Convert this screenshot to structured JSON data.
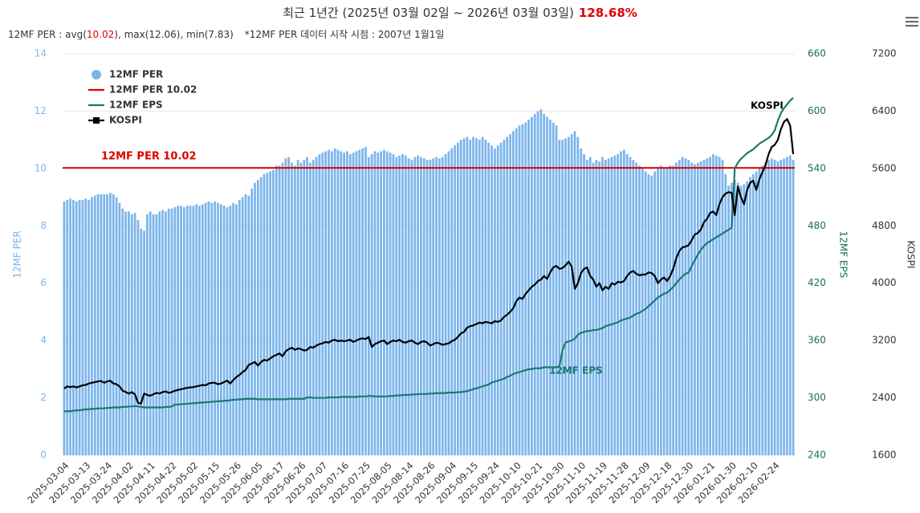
{
  "chart_data": {
    "type": "bar",
    "title": "최근 1년간 (2025년 03월 02일 ~ 2026년 03월 03일)",
    "title_highlight": "128.68%",
    "subtitle": [
      "12MF PER : avg(",
      "10.02",
      "), max(12.06), min(7.83)",
      "*12MF PER 데이터 시작 시점 : 2007년 1월1일"
    ],
    "categories": [
      "2025-03-04",
      null,
      null,
      null,
      null,
      null,
      null,
      "2025-03-13",
      null,
      null,
      null,
      null,
      null,
      null,
      "2025-03-24",
      null,
      null,
      null,
      null,
      null,
      null,
      "2025-04-02",
      null,
      null,
      null,
      null,
      null,
      null,
      "2025-04-11",
      null,
      null,
      null,
      null,
      null,
      null,
      "2025-04-22",
      null,
      null,
      null,
      null,
      null,
      null,
      "2025-05-02",
      null,
      null,
      null,
      null,
      null,
      null,
      "2025-05-15",
      null,
      null,
      null,
      null,
      null,
      null,
      "2025-05-26",
      null,
      null,
      null,
      null,
      null,
      null,
      "2025-06-05",
      null,
      null,
      null,
      null,
      null,
      null,
      "2025-06-17",
      null,
      null,
      null,
      null,
      null,
      null,
      "2025-06-26",
      null,
      null,
      null,
      null,
      null,
      null,
      "2025-07-07",
      null,
      null,
      null,
      null,
      null,
      null,
      "2025-07-16",
      null,
      null,
      null,
      null,
      null,
      null,
      "2025-07-25",
      null,
      null,
      null,
      null,
      null,
      null,
      "2025-08-05",
      null,
      null,
      null,
      null,
      null,
      null,
      "2025-08-14",
      null,
      null,
      null,
      null,
      null,
      null,
      "2025-08-26",
      null,
      null,
      null,
      null,
      null,
      null,
      "2025-09-04",
      null,
      null,
      null,
      null,
      null,
      null,
      "2025-09-15",
      null,
      null,
      null,
      null,
      null,
      null,
      "2025-09-24",
      null,
      null,
      null,
      null,
      null,
      null,
      "2025-10-10",
      null,
      null,
      null,
      null,
      null,
      null,
      "2025-10-21",
      null,
      null,
      null,
      null,
      null,
      null,
      "2025-10-30",
      null,
      null,
      null,
      null,
      null,
      null,
      "2025-11-10",
      null,
      null,
      null,
      null,
      null,
      null,
      "2025-11-19",
      null,
      null,
      null,
      null,
      null,
      null,
      "2025-11-28",
      null,
      null,
      null,
      null,
      null,
      null,
      "2025-12-09",
      null,
      null,
      null,
      null,
      null,
      null,
      "2025-12-18",
      null,
      null,
      null,
      null,
      null,
      null,
      "2025-12-30",
      null,
      null,
      null,
      null,
      null,
      null,
      "2026-01-21",
      null,
      null,
      null,
      null,
      null,
      null,
      "2026-01-30",
      null,
      null,
      null,
      null,
      null,
      null,
      "2026-02-10",
      null,
      null,
      null,
      null,
      null,
      null,
      "2026-02-24",
      null,
      null,
      null,
      null,
      null,
      null
    ],
    "series": [
      {
        "name": "12MF PER",
        "type": "bar",
        "color": "#7cb5ec",
        "values": [
          8.85,
          8.9,
          8.95,
          8.9,
          8.85,
          8.9,
          8.9,
          8.95,
          8.9,
          9.0,
          9.05,
          9.1,
          9.1,
          9.1,
          9.1,
          9.15,
          9.1,
          9.0,
          8.8,
          8.6,
          8.5,
          8.5,
          8.4,
          8.45,
          8.2,
          7.9,
          7.83,
          8.4,
          8.5,
          8.4,
          8.4,
          8.5,
          8.55,
          8.5,
          8.6,
          8.6,
          8.65,
          8.7,
          8.7,
          8.65,
          8.7,
          8.7,
          8.7,
          8.75,
          8.7,
          8.75,
          8.8,
          8.85,
          8.8,
          8.85,
          8.8,
          8.75,
          8.7,
          8.65,
          8.7,
          8.8,
          8.75,
          8.9,
          9.0,
          9.1,
          9.05,
          9.3,
          9.5,
          9.6,
          9.7,
          9.8,
          9.85,
          9.9,
          9.95,
          10.1,
          10.1,
          10.2,
          10.35,
          10.4,
          10.2,
          10.1,
          10.3,
          10.2,
          10.3,
          10.4,
          10.2,
          10.3,
          10.4,
          10.5,
          10.55,
          10.6,
          10.65,
          10.6,
          10.7,
          10.65,
          10.6,
          10.55,
          10.6,
          10.5,
          10.55,
          10.6,
          10.65,
          10.7,
          10.75,
          10.4,
          10.5,
          10.6,
          10.55,
          10.6,
          10.65,
          10.6,
          10.55,
          10.5,
          10.4,
          10.45,
          10.5,
          10.45,
          10.35,
          10.3,
          10.4,
          10.45,
          10.4,
          10.35,
          10.3,
          10.3,
          10.35,
          10.4,
          10.35,
          10.4,
          10.5,
          10.6,
          10.7,
          10.8,
          10.9,
          11.0,
          11.05,
          11.1,
          11.0,
          11.1,
          11.05,
          11.0,
          11.1,
          11.0,
          10.9,
          10.8,
          10.7,
          10.8,
          10.9,
          11.0,
          11.1,
          11.2,
          11.3,
          11.4,
          11.5,
          11.55,
          11.6,
          11.7,
          11.8,
          11.9,
          12.0,
          12.06,
          11.9,
          11.8,
          11.7,
          11.6,
          11.5,
          11.0,
          11.0,
          11.05,
          11.1,
          11.2,
          11.3,
          11.1,
          10.7,
          10.5,
          10.3,
          10.4,
          10.2,
          10.3,
          10.25,
          10.4,
          10.3,
          10.35,
          10.4,
          10.45,
          10.5,
          10.6,
          10.65,
          10.5,
          10.4,
          10.3,
          10.2,
          10.1,
          10.0,
          9.9,
          9.8,
          9.75,
          9.9,
          10.0,
          10.1,
          10.0,
          10.05,
          10.1,
          10.1,
          10.2,
          10.3,
          10.4,
          10.35,
          10.3,
          10.2,
          10.15,
          10.2,
          10.25,
          10.3,
          10.35,
          10.4,
          10.5,
          10.45,
          10.4,
          10.3,
          9.8,
          9.4,
          9.5,
          9.6,
          9.5,
          9.4,
          9.45,
          9.55,
          9.7,
          9.8,
          9.9,
          10.0,
          10.1,
          10.2,
          10.3,
          10.35,
          10.3,
          10.25,
          10.3,
          10.35,
          10.4,
          10.45,
          10.3
        ]
      },
      {
        "name": "12MF EPS",
        "type": "line",
        "axis": "y2",
        "color": "#1b7a6e",
        "values": [
          286,
          286,
          286,
          286.5,
          287,
          287,
          287.5,
          288,
          288,
          288.5,
          288.5,
          289,
          289,
          289,
          289.5,
          289.5,
          290,
          290,
          290,
          290.5,
          290.5,
          291,
          291,
          291.5,
          291,
          290.5,
          290,
          290,
          290,
          290,
          290,
          290,
          290,
          290.5,
          290.5,
          291,
          293,
          293,
          293.5,
          293.5,
          294,
          294,
          294.5,
          294.5,
          295,
          295,
          295.5,
          295.5,
          296,
          296,
          296.5,
          296.5,
          297,
          297,
          297.5,
          298,
          298,
          298.5,
          298.5,
          299,
          299,
          299,
          299,
          298.5,
          298.5,
          298.5,
          298.5,
          298.5,
          298.5,
          298.5,
          298.5,
          298.5,
          298.5,
          299,
          299,
          299,
          299,
          299,
          299,
          300.5,
          300.5,
          300,
          300,
          300,
          300,
          300,
          300.5,
          300.5,
          300.5,
          300.5,
          301,
          301,
          301,
          301,
          301,
          301,
          301.5,
          301.5,
          301.5,
          302,
          302,
          301.5,
          301.5,
          301.5,
          301.5,
          301.5,
          302,
          302,
          302.5,
          302.5,
          303,
          303,
          303,
          303.5,
          303.5,
          304,
          304,
          304,
          304,
          304.5,
          304.5,
          305,
          305,
          305,
          305,
          305.5,
          305.5,
          305.5,
          306,
          306,
          306.5,
          307,
          308,
          309,
          310,
          311,
          312,
          313,
          314,
          316,
          317,
          318,
          319,
          320,
          322,
          323,
          325,
          326,
          327,
          328,
          329,
          330,
          330,
          331,
          331,
          331,
          332,
          332,
          332,
          332,
          332,
          333,
          350,
          358,
          359,
          360,
          362,
          366,
          368,
          369,
          370,
          370,
          371,
          371,
          372,
          373,
          375,
          376,
          377,
          378,
          379,
          381,
          382,
          383,
          384,
          386,
          388,
          389,
          391,
          393,
          396,
          399,
          402,
          405,
          407,
          409,
          410,
          413,
          416,
          420,
          424,
          427,
          430,
          431,
          438,
          444,
          450,
          455,
          459,
          462,
          464,
          466,
          468,
          470,
          472,
          474,
          476,
          478,
          540,
          546,
          550,
          553,
          556,
          558,
          560,
          563,
          566,
          568,
          570,
          572,
          575,
          580,
          590,
          598,
          603,
          607,
          611,
          614
        ]
      },
      {
        "name": "KOSPI",
        "type": "line",
        "axis": "y3",
        "color": "#000000",
        "values": [
          2530,
          2560,
          2550,
          2560,
          2545,
          2560,
          2575,
          2580,
          2600,
          2610,
          2620,
          2630,
          2635,
          2610,
          2630,
          2640,
          2600,
          2590,
          2560,
          2500,
          2480,
          2460,
          2480,
          2450,
          2330,
          2320,
          2460,
          2440,
          2430,
          2450,
          2470,
          2460,
          2480,
          2490,
          2470,
          2480,
          2500,
          2510,
          2520,
          2530,
          2540,
          2545,
          2550,
          2560,
          2570,
          2580,
          2575,
          2600,
          2610,
          2610,
          2590,
          2600,
          2620,
          2640,
          2600,
          2650,
          2690,
          2720,
          2760,
          2790,
          2860,
          2880,
          2900,
          2850,
          2900,
          2930,
          2920,
          2950,
          2980,
          3000,
          3020,
          2980,
          3050,
          3080,
          3100,
          3070,
          3090,
          3080,
          3060,
          3070,
          3110,
          3100,
          3130,
          3150,
          3160,
          3180,
          3170,
          3200,
          3210,
          3190,
          3200,
          3190,
          3200,
          3210,
          3180,
          3200,
          3220,
          3230,
          3220,
          3250,
          3110,
          3150,
          3170,
          3190,
          3200,
          3150,
          3180,
          3200,
          3190,
          3210,
          3180,
          3170,
          3190,
          3200,
          3170,
          3150,
          3180,
          3190,
          3170,
          3130,
          3150,
          3170,
          3160,
          3140,
          3150,
          3160,
          3190,
          3210,
          3250,
          3300,
          3320,
          3380,
          3400,
          3410,
          3430,
          3450,
          3440,
          3460,
          3450,
          3440,
          3470,
          3460,
          3480,
          3530,
          3560,
          3600,
          3650,
          3750,
          3800,
          3780,
          3850,
          3900,
          3950,
          3980,
          4030,
          4050,
          4100,
          4060,
          4150,
          4220,
          4240,
          4200,
          4210,
          4250,
          4300,
          4230,
          3920,
          4000,
          4140,
          4200,
          4220,
          4100,
          4050,
          3950,
          4000,
          3900,
          3950,
          3920,
          4000,
          3980,
          4020,
          4010,
          4030,
          4100,
          4150,
          4170,
          4130,
          4110,
          4120,
          4120,
          4150,
          4140,
          4100,
          4000,
          4050,
          4080,
          4030,
          4100,
          4200,
          4350,
          4450,
          4500,
          4510,
          4530,
          4600,
          4680,
          4700,
          4750,
          4850,
          4900,
          4980,
          5000,
          4950,
          5100,
          5200,
          5250,
          5270,
          5260,
          4950,
          5350,
          5200,
          5100,
          5300,
          5400,
          5430,
          5300,
          5450,
          5550,
          5650,
          5800,
          5900,
          5930,
          6000,
          6150,
          6250,
          6290,
          6200,
          5800
        ]
      }
    ],
    "reference_line": {
      "name": "12MF PER 10.02",
      "value": 10.02,
      "color": "#e00000"
    },
    "annotations": [
      "KOSPI",
      "12MF EPS"
    ],
    "ylabel": "12MF PER",
    "y2label": "12MF EPS",
    "y3label": "KOSPI",
    "ylim": [
      0,
      14
    ],
    "yticks": [
      0,
      2,
      4,
      6,
      8,
      10,
      12,
      14
    ],
    "y2lim": [
      240,
      660
    ],
    "y2ticks": [
      240,
      300,
      360,
      420,
      480,
      540,
      600,
      660
    ],
    "y3lim": [
      1600,
      7200
    ],
    "y3ticks": [
      1600,
      2400,
      3200,
      4000,
      4800,
      5600,
      6400,
      7200
    ],
    "grid": true,
    "legend": "upper left"
  }
}
